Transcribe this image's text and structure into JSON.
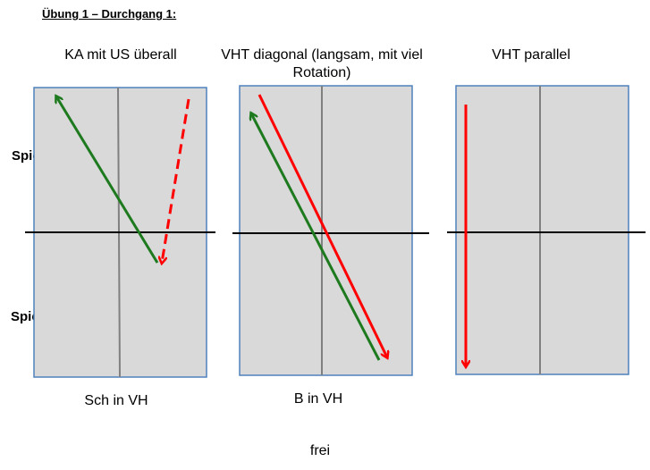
{
  "heading": "Übung 1 – Durchgang 1:",
  "columns": [
    {
      "title": "KA mit US überall",
      "bottom_label": "Sch in VH"
    },
    {
      "title": "VHT diagonal (langsam, mit viel Rotation)",
      "bottom_label": "B in VH"
    },
    {
      "title": "VHT parallel",
      "bottom_label": ""
    }
  ],
  "players": {
    "top": "Spieler B",
    "bottom": "Spieler A"
  },
  "footer": "frei",
  "colors": {
    "table_fill": "#d9d9d9",
    "table_border": "#4f81bd",
    "center_line": "#808080",
    "net": "#000000",
    "green_arrow": "#1e7a1e",
    "red_arrow": "#ff0000"
  }
}
